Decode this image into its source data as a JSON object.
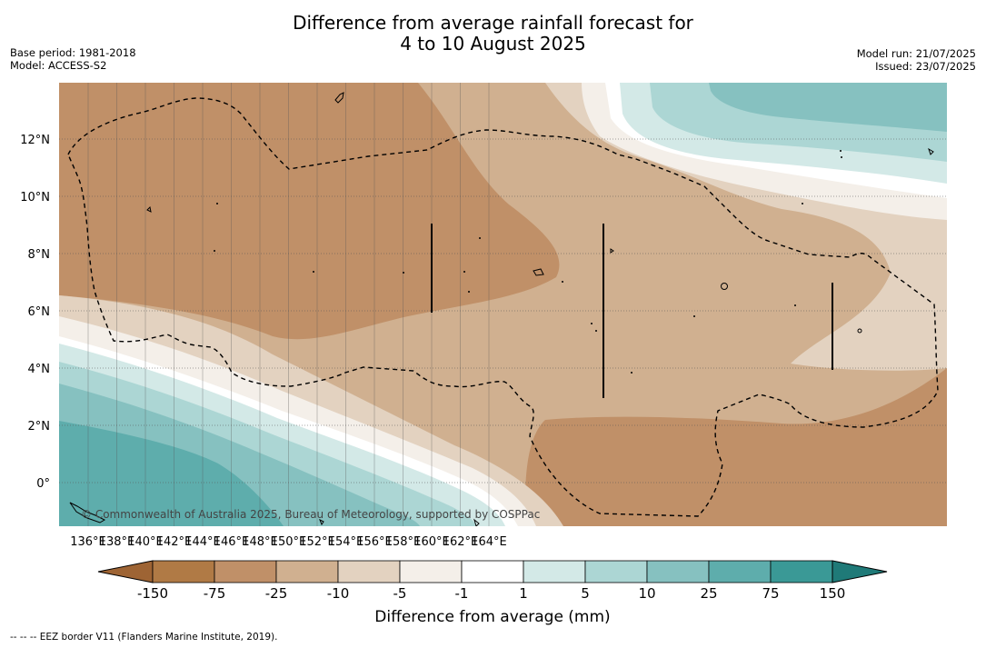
{
  "title": {
    "line1": "Difference from average rainfall forecast for",
    "line2": "4 to 10 August 2025"
  },
  "meta": {
    "base_period": "Base period: 1981-2018",
    "model": "Model: ACCESS-S2",
    "model_run": "Model run: 21/07/2025",
    "issued": "Issued: 23/07/2025"
  },
  "map": {
    "lon_labels": [
      "136°E",
      "138°E",
      "140°E",
      "142°E",
      "144°E",
      "146°E",
      "148°E",
      "150°E",
      "152°E",
      "154°E",
      "156°E",
      "158°E",
      "160°E",
      "162°E",
      "164°E"
    ],
    "lat_labels": [
      "12°N",
      "10°N",
      "8°N",
      "6°N",
      "4°N",
      "2°N",
      "0°"
    ],
    "copyright": "© Commonwealth of Australia 2025, Bureau of Meteorology, supported by COSPPac"
  },
  "legend": {
    "title": "Difference from average (mm)",
    "tick_labels": [
      "-150",
      "-75",
      "-25",
      "-10",
      "-5",
      "-1",
      "1",
      "5",
      "10",
      "25",
      "75",
      "150"
    ],
    "colors": {
      "lt_-150": "#9e6434",
      "-150_-75": "#b07a45",
      "-75_-25": "#c09068",
      "-25_-10": "#d0b090",
      "-10_-5": "#e3d2c0",
      "-5_-1": "#f4efe9",
      "-1_1": "#ffffff",
      "1_5": "#d3e9e7",
      "5_10": "#acd6d4",
      "10_25": "#86c1c0",
      "25_75": "#5eadac",
      "75_150": "#3a9996",
      "gt_150": "#1f7a78"
    }
  },
  "footer": "--  --  -- EEZ border V11 (Flanders Marine Institute, 2019)."
}
